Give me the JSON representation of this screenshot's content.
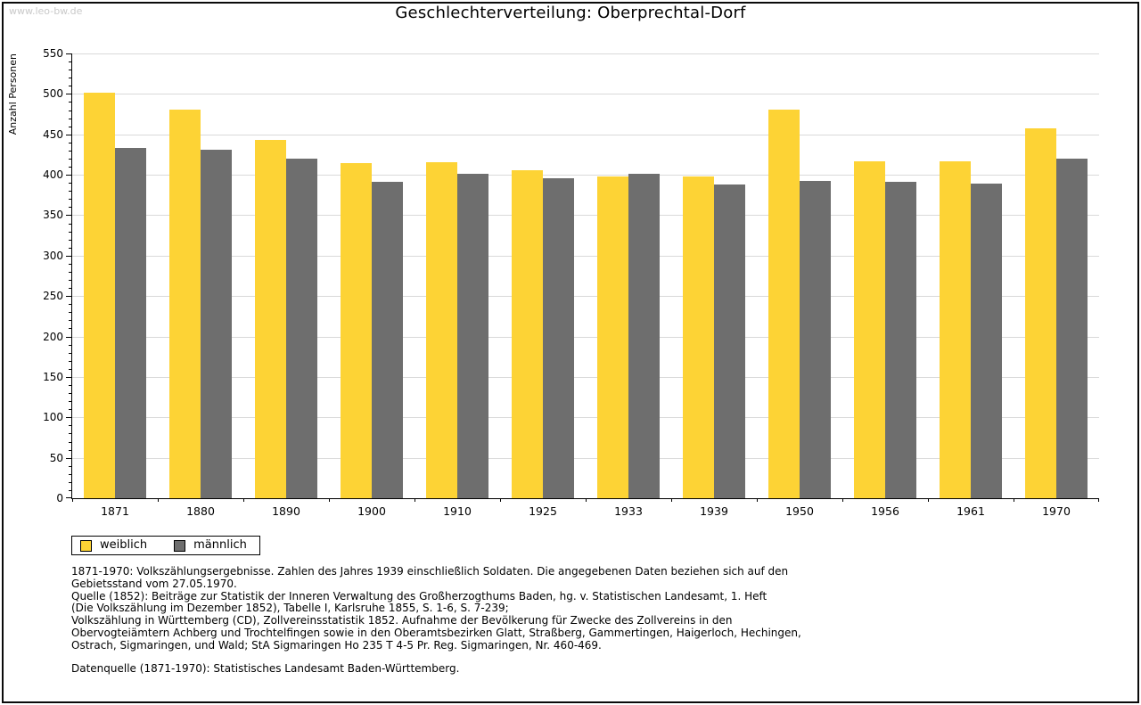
{
  "page": {
    "watermark": "www.leo-bw.de",
    "title": "Geschlechterverteilung: Oberprechtal-Dorf"
  },
  "chart_data": {
    "type": "bar",
    "title": "Geschlechterverteilung: Oberprechtal-Dorf",
    "ylabel": "Anzahl Personen",
    "xlabel": "",
    "ylim": [
      0,
      550
    ],
    "ytick_major_step": 50,
    "ytick_minor_step": 10,
    "grid": true,
    "legend_position": "bottom-left",
    "categories": [
      "1871",
      "1880",
      "1890",
      "1900",
      "1910",
      "1925",
      "1933",
      "1939",
      "1950",
      "1956",
      "1961",
      "1970"
    ],
    "series": [
      {
        "name": "weiblich",
        "color": "#fdd335",
        "values": [
          501,
          481,
          443,
          414,
          416,
          406,
          398,
          398,
          481,
          417,
          417,
          457
        ]
      },
      {
        "name": "männlich",
        "color": "#6e6e6e",
        "values": [
          433,
          431,
          420,
          391,
          401,
          396,
          401,
          388,
          392,
          391,
          389,
          420
        ]
      }
    ]
  },
  "footnotes": {
    "lines": [
      "1871-1970: Volkszählungsergebnisse. Zahlen des Jahres 1939 einschließlich Soldaten. Die angegebenen Daten beziehen sich auf den",
      "Gebietsstand vom 27.05.1970.",
      "Quelle (1852): Beiträge zur Statistik der Inneren Verwaltung des Großherzogthums Baden, hg. v. Statistischen Landesamt, 1. Heft",
      "(Die Volkszählung im Dezember 1852), Tabelle I, Karlsruhe 1855, S. 1-6, S. 7-239;",
      "Volkszählung in Württemberg (CD), Zollvereinsstatistik 1852. Aufnahme der Bevölkerung für Zwecke des Zollvereins in den",
      "Obervogteiämtern Achberg und Trochtelfingen sowie in den Oberamtsbezirken Glatt, Straßberg, Gammertingen, Haigerloch, Hechingen,",
      "Ostrach, Sigmaringen, und Wald; StA Sigmaringen Ho 235 T 4-5 Pr. Reg. Sigmaringen, Nr. 460-469."
    ],
    "datenquelle": "Datenquelle (1871-1970): Statistisches Landesamt Baden-Württemberg."
  },
  "colors": {
    "female_bar": "#fdd335",
    "male_bar": "#6e6e6e",
    "gridline": "#d9d9d9",
    "axis": "#000000",
    "watermark_text": "#c9c9c9"
  }
}
